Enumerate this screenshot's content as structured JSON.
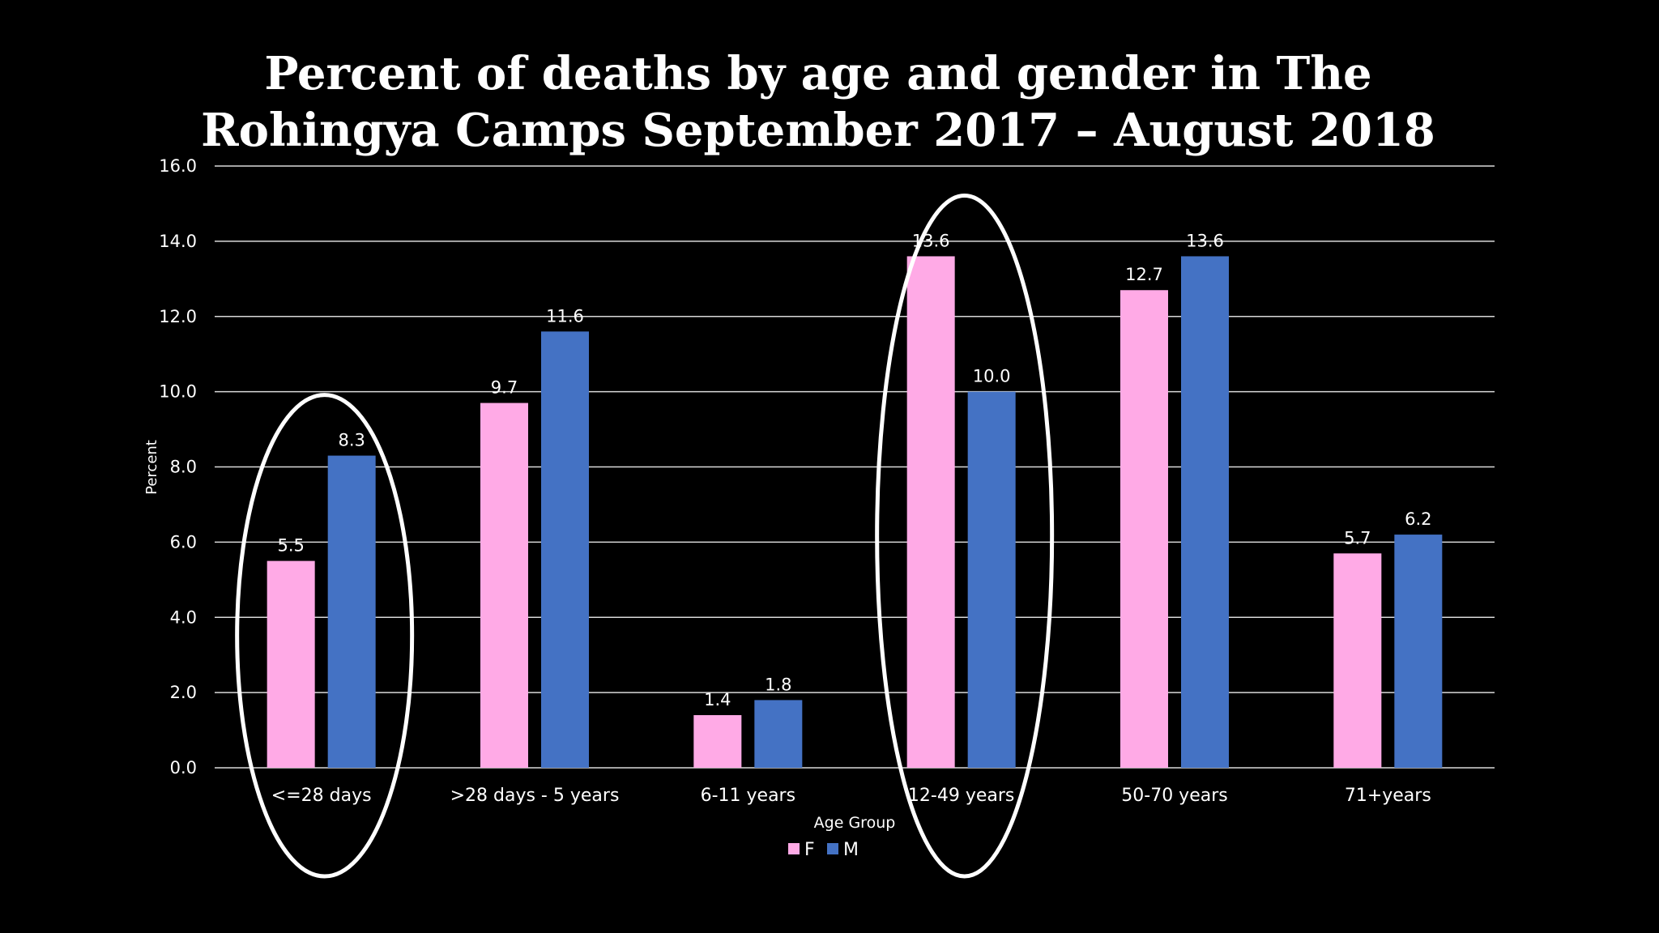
{
  "chart_data": {
    "type": "bar",
    "title_lines": [
      "Percent of deaths by age and gender  in The",
      "Rohingya Camps September 2017 – August 2018"
    ],
    "xlabel": "Age Group",
    "ylabel": "Percent",
    "ylim": [
      0,
      16
    ],
    "y_ticks": [
      "0.0",
      "2.0",
      "4.0",
      "6.0",
      "8.0",
      "10.0",
      "12.0",
      "14.0",
      "16.0"
    ],
    "grid": true,
    "legend_position": "bottom",
    "categories": [
      "<=28 days",
      ">28 days - 5 years",
      "6-11 years",
      "12-49 years",
      "50-70 years",
      "71+years"
    ],
    "series": [
      {
        "name": "F",
        "color": "#ffaae6",
        "values": [
          5.5,
          9.7,
          1.4,
          13.6,
          12.7,
          5.7
        ],
        "labels": [
          "5.5",
          "9.7",
          "1.4",
          "13.6",
          "12.7",
          "5.7"
        ]
      },
      {
        "name": "M",
        "color": "#4472c4",
        "values": [
          8.3,
          11.6,
          1.8,
          10.0,
          13.6,
          6.2
        ],
        "labels": [
          "8.3",
          "11.6",
          "1.8",
          "10.0",
          "13.6",
          "6.2"
        ]
      }
    ],
    "highlighted_categories": [
      "<=28 days",
      "12-49 years"
    ],
    "colors": {
      "background": "#000000",
      "text": "#ffffff",
      "gridline": "#d9d9d9",
      "highlight_ellipse": "#ffffff"
    }
  }
}
